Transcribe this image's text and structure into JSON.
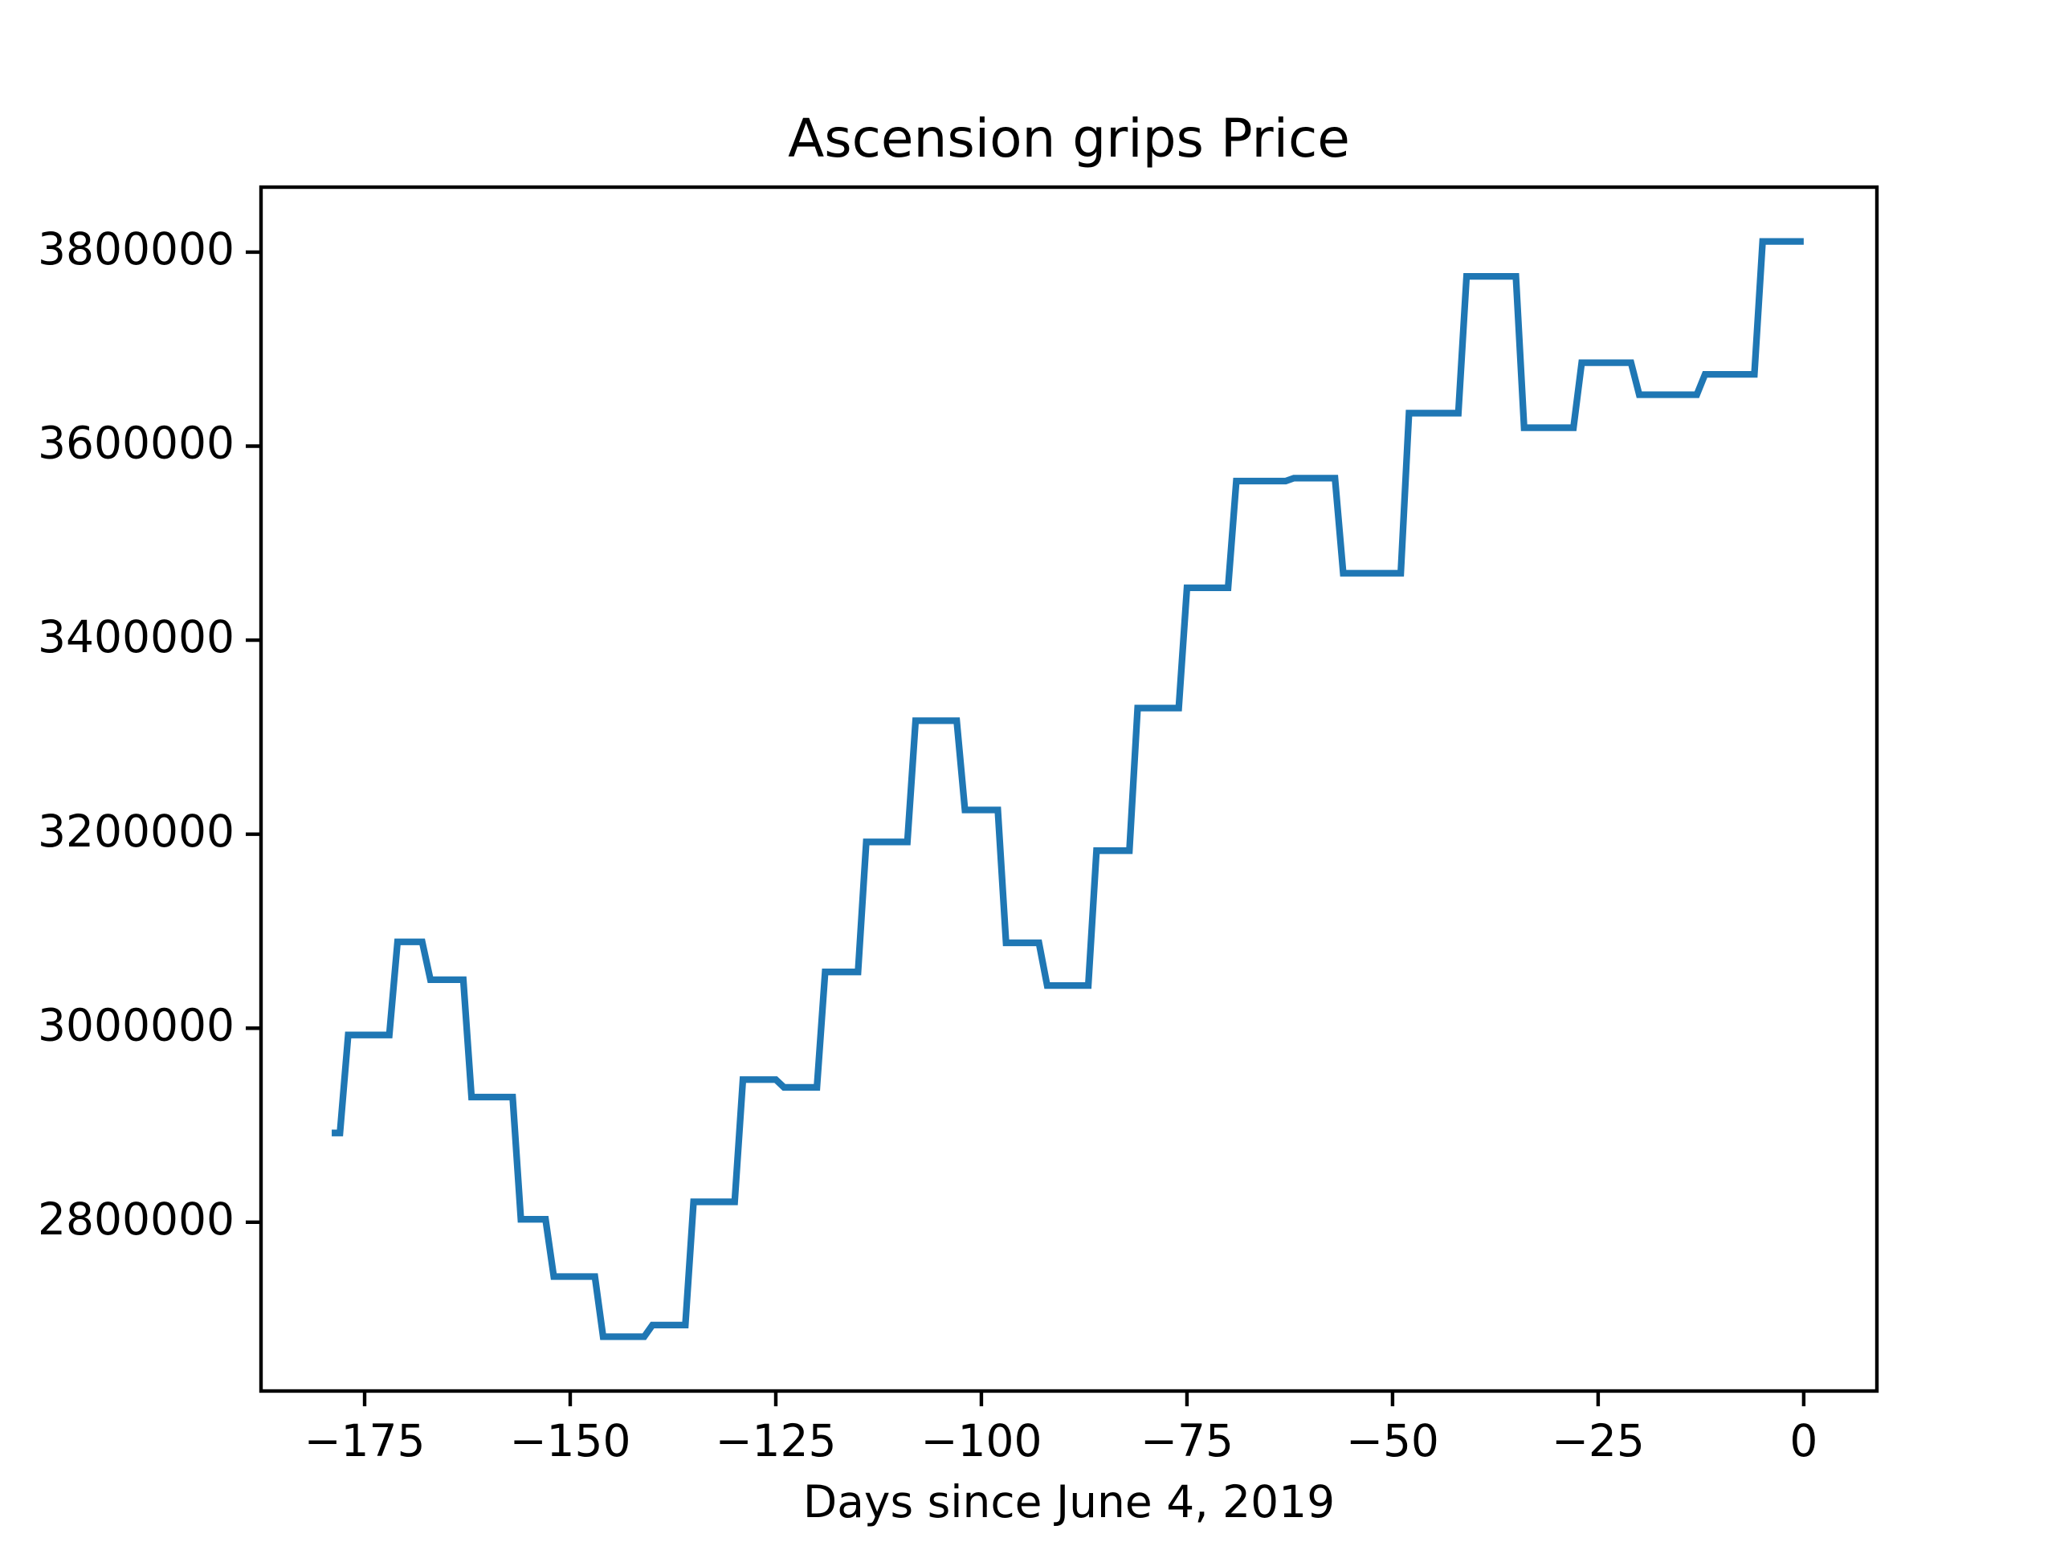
{
  "chart_data": {
    "type": "line",
    "title": "Ascension grips Price",
    "x_label": "Days since June 4, 2019",
    "x": [
      -179,
      -178,
      -177,
      -172,
      -171,
      -168,
      -167,
      -163,
      -162,
      -157,
      -156,
      -153,
      -152,
      -147,
      -146,
      -141,
      -140,
      -136,
      -135,
      -130,
      -129,
      -125,
      -124,
      -120,
      -119,
      -115,
      -114,
      -109,
      -108,
      -103,
      -102,
      -98,
      -97,
      -93,
      -92,
      -87,
      -86,
      -82,
      -81,
      -76,
      -75,
      -70,
      -69,
      -63,
      -62,
      -57,
      -56,
      -49,
      -48,
      -42,
      -41,
      -35,
      -34,
      -28,
      -27,
      -21,
      -20,
      -13,
      -12,
      -6,
      -5,
      0
    ],
    "values": [
      2892000,
      2892000,
      2993000,
      2993000,
      3089000,
      3089000,
      3050000,
      3050000,
      2929000,
      2929000,
      2803000,
      2803000,
      2744000,
      2744000,
      2682000,
      2682000,
      2694000,
      2694000,
      2821000,
      2821000,
      2947000,
      2947000,
      2939000,
      2939000,
      3058000,
      3058000,
      3192000,
      3192000,
      3317000,
      3317000,
      3225000,
      3225000,
      3088000,
      3088000,
      3044000,
      3044000,
      3183000,
      3183000,
      3330000,
      3330000,
      3454000,
      3454000,
      3564000,
      3564000,
      3567000,
      3567000,
      3469000,
      3469000,
      3634000,
      3634000,
      3775000,
      3775000,
      3619000,
      3619000,
      3686000,
      3686000,
      3653000,
      3653000,
      3674000,
      3674000,
      3811000,
      3811000
    ],
    "color": "#1f77b4",
    "xlim": [
      -187.6,
      8.9
    ],
    "xticks": [
      {
        "value": -175,
        "label": "−175"
      },
      {
        "value": -150,
        "label": "−150"
      },
      {
        "value": -125,
        "label": "−125"
      },
      {
        "value": -100,
        "label": "−100"
      },
      {
        "value": -75,
        "label": "−75"
      },
      {
        "value": -50,
        "label": "−50"
      },
      {
        "value": -25,
        "label": "−25"
      },
      0
    ],
    "ylim": [
      2626000,
      3867000
    ],
    "yticks": [
      2800000,
      3000000,
      3200000,
      3400000,
      3600000,
      3800000
    ],
    "grid": false
  }
}
